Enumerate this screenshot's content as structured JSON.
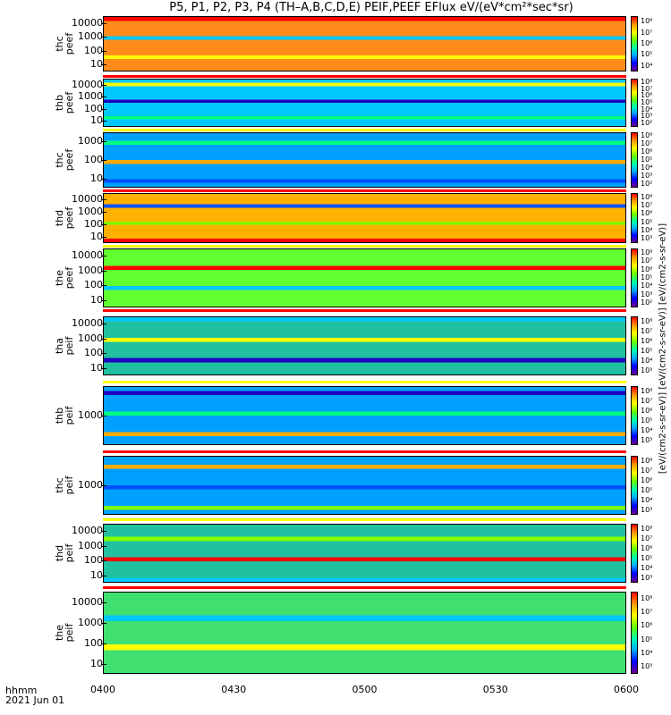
{
  "title": "P5, P1, P2, P3, P4 (TH–A,B,C,D,E) PEIF,PEEF EFlux eV/(eV*cm²*sec*sr)",
  "units_label": "[eV/(cm2-s-sr-eV)] [eV/(cm2-s-sr-eV)] [eV/(cm2-s-sr-eV)]",
  "x_axis": {
    "label_line1": "hhmm",
    "label_line2": "2021 Jun 01",
    "ticks": [
      "0400",
      "0430",
      "0500",
      "0530",
      "0600"
    ]
  },
  "chart_data": {
    "type": "heatmap",
    "x_range": [
      "0400",
      "0600"
    ],
    "y_scale": "log",
    "panels": [
      {
        "label": "thc\npeef",
        "yticks": [
          "10",
          "100",
          "1000",
          "10000"
        ],
        "cbar": [
          "10⁴",
          "10⁵",
          "10⁶",
          "10⁷",
          "10⁸"
        ],
        "dominant_color": "#ff8c1a"
      },
      {
        "label": "thb\npeef",
        "yticks": [
          "10",
          "100",
          "1000",
          "10000"
        ],
        "cbar": [
          "10²",
          "10³",
          "10⁴",
          "10⁵",
          "10⁶",
          "10⁷",
          "10⁸"
        ],
        "dominant_color": "#00c8ff"
      },
      {
        "label": "thc\npeef",
        "yticks": [
          "10",
          "100",
          "1000"
        ],
        "cbar": [
          "10²",
          "10³",
          "10⁴",
          "10⁵",
          "10⁶",
          "10⁷",
          "10⁸"
        ],
        "dominant_color": "#00a0ff"
      },
      {
        "label": "thd\npeef",
        "yticks": [
          "10",
          "100",
          "1000",
          "10000"
        ],
        "cbar": [
          "10³",
          "10⁴",
          "10⁵",
          "10⁶",
          "10⁷",
          "10⁸"
        ],
        "dominant_color": "#ffb000"
      },
      {
        "label": "the\npeef",
        "yticks": [
          "10",
          "100",
          "1000",
          "10000"
        ],
        "cbar": [
          "10²",
          "10³",
          "10⁴",
          "10⁵",
          "10⁶",
          "10⁷",
          "10⁸"
        ],
        "dominant_color": "#60ff30"
      },
      {
        "label": "tha\npeif",
        "yticks": [
          "10",
          "100",
          "1000",
          "10000"
        ],
        "cbar": [
          "10³",
          "10⁴",
          "10⁵",
          "10⁶",
          "10⁷",
          "10⁸"
        ],
        "dominant_color": "#20c0a0"
      },
      {
        "label": "thb\npeif",
        "yticks": [
          "1000"
        ],
        "cbar": [
          "10³",
          "10⁴",
          "10⁵",
          "10⁶",
          "10⁷",
          "10⁸"
        ],
        "dominant_color": "#00a0ff"
      },
      {
        "label": "thc\npeif",
        "yticks": [
          "1000"
        ],
        "cbar": [
          "10³",
          "10⁴",
          "10⁵",
          "10⁶",
          "10⁷",
          "10⁸"
        ],
        "dominant_color": "#00a0ff"
      },
      {
        "label": "thd\npeif",
        "yticks": [
          "10",
          "100",
          "1000",
          "10000"
        ],
        "cbar": [
          "10³",
          "10⁴",
          "10⁵",
          "10⁶",
          "10⁷",
          "10⁸"
        ],
        "dominant_color": "#20c0a0"
      },
      {
        "label": "the\npeif",
        "yticks": [
          "10",
          "100",
          "1000",
          "10000"
        ],
        "cbar": [
          "10³",
          "10⁴",
          "10⁵",
          "10⁶",
          "10⁷",
          "10⁸"
        ],
        "dominant_color": "#40e070"
      }
    ]
  }
}
